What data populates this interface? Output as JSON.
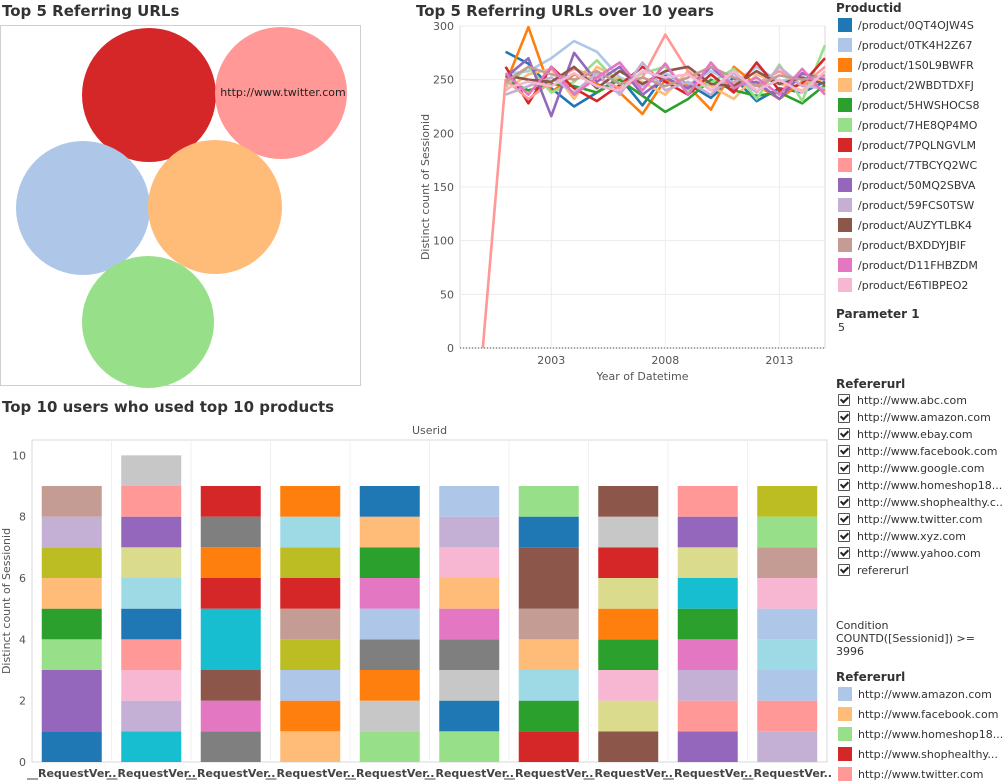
{
  "panels": {
    "bubble_title": "Top 5 Referring URLs",
    "line_title": "Top 5 Referring URLs over 10 years",
    "bar_title": "Top 10 users who used top 10 products"
  },
  "bubble": {
    "label": "http://www.twitter.com",
    "colors": [
      "#d62728",
      "#ff9896",
      "#aec7e8",
      "#ffbb78",
      "#98df8a"
    ]
  },
  "legend_product": {
    "title": "Productid",
    "items": [
      {
        "label": "/product/0QT4OJW4S",
        "color": "#1f77b4"
      },
      {
        "label": "/product/0TK4H2Z67",
        "color": "#aec7e8"
      },
      {
        "label": "/product/1S0L9BWFR",
        "color": "#ff7f0e"
      },
      {
        "label": "/product/2WBDTDXFJ",
        "color": "#ffbb78"
      },
      {
        "label": "/product/5HWSHOCS8",
        "color": "#2ca02c"
      },
      {
        "label": "/product/7HE8QP4MO",
        "color": "#98df8a"
      },
      {
        "label": "/product/7PQLNGVLM",
        "color": "#d62728"
      },
      {
        "label": "/product/7TBCYQ2WC",
        "color": "#ff9896"
      },
      {
        "label": "/product/50MQ2SBVA",
        "color": "#9467bd"
      },
      {
        "label": "/product/59FCS0TSW",
        "color": "#c5b0d5"
      },
      {
        "label": "/product/AUZYTLBK4",
        "color": "#8c564b"
      },
      {
        "label": "/product/BXDDYJBIF",
        "color": "#c49c94"
      },
      {
        "label": "/product/D11FHBZDM",
        "color": "#e377c2"
      },
      {
        "label": "/product/E6TIBPEO2",
        "color": "#f7b6d2"
      }
    ]
  },
  "parameter": {
    "title": "Parameter 1",
    "value": "5"
  },
  "filter_referer": {
    "title": "Refererurl",
    "items": [
      "http://www.abc.com",
      "http://www.amazon.com",
      "http://www.ebay.com",
      "http://www.facebook.com",
      "http://www.google.com",
      "http://www.homeshop18...",
      "http://www.shophealthy.c..",
      "http://www.twitter.com",
      "http://www.xyz.com",
      "http://www.yahoo.com",
      "refererurl"
    ]
  },
  "condition": {
    "line1": "Condition",
    "line2": "COUNTD([Sessionid]) >=",
    "line3": "3996"
  },
  "legend_referer": {
    "title": "Refererurl",
    "items": [
      {
        "label": "http://www.amazon.com",
        "color": "#aec7e8"
      },
      {
        "label": "http://www.facebook.com",
        "color": "#ffbb78"
      },
      {
        "label": "http://www.homeshop18...",
        "color": "#98df8a"
      },
      {
        "label": "http://www.shophealthy...",
        "color": "#d62728"
      },
      {
        "label": "http://www.twitter.com",
        "color": "#ff9896"
      }
    ]
  },
  "chart_data": [
    {
      "type": "line",
      "title": "Top 5 Referring URLs over 10 years",
      "xlabel": "Year of Datetime",
      "ylabel": "Distinct count of Sessionid",
      "xlim": [
        1999,
        2015
      ],
      "ylim": [
        0,
        300
      ],
      "xticks": [
        2003,
        2008,
        2013
      ],
      "yticks": [
        0,
        50,
        100,
        150,
        200,
        250,
        300
      ],
      "x": [
        2000,
        2001,
        2002,
        2003,
        2004,
        2005,
        2006,
        2007,
        2008,
        2009,
        2010,
        2011,
        2012,
        2013,
        2014,
        2015
      ],
      "series": [
        {
          "color": "#1f77b4",
          "values": [
            null,
            276,
            265,
            242,
            225,
            238,
            252,
            226,
            255,
            246,
            233,
            252,
            230,
            242,
            238,
            248
          ]
        },
        {
          "color": "#aec7e8",
          "values": [
            null,
            255,
            258,
            270,
            286,
            276,
            252,
            244,
            256,
            245,
            258,
            247,
            262,
            248,
            255,
            250
          ]
        },
        {
          "color": "#ff7f0e",
          "values": [
            null,
            246,
            299,
            238,
            255,
            246,
            238,
            218,
            250,
            244,
            222,
            262,
            245,
            232,
            248,
            240
          ]
        },
        {
          "color": "#ffbb78",
          "values": [
            null,
            240,
            255,
            260,
            232,
            262,
            250,
            248,
            236,
            258,
            244,
            232,
            255,
            246,
            240,
            252
          ]
        },
        {
          "color": "#2ca02c",
          "values": [
            null,
            250,
            240,
            246,
            244,
            238,
            250,
            235,
            220,
            232,
            250,
            240,
            235,
            238,
            228,
            245
          ]
        },
        {
          "color": "#98df8a",
          "values": [
            null,
            244,
            262,
            238,
            248,
            268,
            245,
            256,
            262,
            240,
            247,
            260,
            232,
            264,
            230,
            282
          ]
        },
        {
          "color": "#d62728",
          "values": [
            null,
            262,
            228,
            262,
            242,
            230,
            245,
            262,
            248,
            236,
            255,
            238,
            266,
            240,
            246,
            270
          ]
        },
        {
          "color": "#ff9896",
          "values": [
            0,
            250,
            232,
            248,
            260,
            252,
            242,
            252,
            292,
            258,
            240,
            248,
            246,
            258,
            244,
            262
          ]
        },
        {
          "color": "#9467bd",
          "values": [
            null,
            252,
            270,
            216,
            275,
            248,
            262,
            236,
            252,
            242,
            262,
            244,
            248,
            232,
            256,
            250
          ]
        },
        {
          "color": "#c5b0d5",
          "values": [
            null,
            236,
            244,
            252,
            238,
            256,
            236,
            266,
            240,
            248,
            236,
            256,
            238,
            262,
            244,
            242
          ]
        },
        {
          "color": "#8c564b",
          "values": [
            null,
            254,
            250,
            248,
            262,
            242,
            258,
            246,
            258,
            262,
            246,
            244,
            258,
            246,
            252,
            246
          ]
        },
        {
          "color": "#c49c94",
          "values": [
            null,
            248,
            262,
            255,
            250,
            258,
            246,
            252,
            244,
            252,
            262,
            252,
            244,
            254,
            250,
            254
          ]
        },
        {
          "color": "#e377c2",
          "values": [
            null,
            256,
            236,
            262,
            236,
            252,
            266,
            240,
            265,
            236,
            266,
            242,
            252,
            236,
            260,
            236
          ]
        },
        {
          "color": "#f7b6d2",
          "values": [
            null,
            242,
            248,
            244,
            256,
            244,
            240,
            258,
            252,
            255,
            240,
            258,
            240,
            250,
            238,
            258
          ]
        }
      ]
    },
    {
      "type": "bar",
      "stacked": true,
      "title": "Top 10 users who used top 10 products",
      "column_header": "Userid",
      "ylabel": "Distinct count of Sessionid",
      "ylim": [
        0,
        10.5
      ],
      "yticks": [
        0,
        2,
        4,
        6,
        8,
        10
      ],
      "categories": [
        "__RequestVer..",
        "__RequestVer..",
        "__RequestVer..",
        "__RequestVer..",
        "__RequestVer..",
        "__RequestVer..",
        "__RequestVer..",
        "__RequestVer..",
        "__RequestVer..",
        "__RequestVer.."
      ],
      "stacks": [
        [
          {
            "v": 1,
            "c": "#1f77b4"
          },
          {
            "v": 2,
            "c": "#9467bd"
          },
          {
            "v": 1,
            "c": "#98df8a"
          },
          {
            "v": 1,
            "c": "#2ca02c"
          },
          {
            "v": 1,
            "c": "#ffbb78"
          },
          {
            "v": 1,
            "c": "#bcbd22"
          },
          {
            "v": 1,
            "c": "#c5b0d5"
          },
          {
            "v": 1,
            "c": "#c49c94"
          }
        ],
        [
          {
            "v": 1,
            "c": "#17becf"
          },
          {
            "v": 1,
            "c": "#c5b0d5"
          },
          {
            "v": 1,
            "c": "#f7b6d2"
          },
          {
            "v": 1,
            "c": "#ff9896"
          },
          {
            "v": 1,
            "c": "#1f77b4"
          },
          {
            "v": 1,
            "c": "#9edae5"
          },
          {
            "v": 1,
            "c": "#dbdb8d"
          },
          {
            "v": 1,
            "c": "#9467bd"
          },
          {
            "v": 1,
            "c": "#ff9896"
          },
          {
            "v": 1,
            "c": "#c7c7c7"
          }
        ],
        [
          {
            "v": 1,
            "c": "#7f7f7f"
          },
          {
            "v": 1,
            "c": "#e377c2"
          },
          {
            "v": 1,
            "c": "#8c564b"
          },
          {
            "v": 2,
            "c": "#17becf"
          },
          {
            "v": 1,
            "c": "#d62728"
          },
          {
            "v": 1,
            "c": "#ff7f0e"
          },
          {
            "v": 1,
            "c": "#7f7f7f"
          },
          {
            "v": 1,
            "c": "#d62728"
          }
        ],
        [
          {
            "v": 1,
            "c": "#ffbb78"
          },
          {
            "v": 1,
            "c": "#ff7f0e"
          },
          {
            "v": 1,
            "c": "#aec7e8"
          },
          {
            "v": 1,
            "c": "#bcbd22"
          },
          {
            "v": 1,
            "c": "#c49c94"
          },
          {
            "v": 1,
            "c": "#d62728"
          },
          {
            "v": 1,
            "c": "#bcbd22"
          },
          {
            "v": 1,
            "c": "#9edae5"
          },
          {
            "v": 1,
            "c": "#ff7f0e"
          }
        ],
        [
          {
            "v": 1,
            "c": "#98df8a"
          },
          {
            "v": 1,
            "c": "#c7c7c7"
          },
          {
            "v": 1,
            "c": "#ff7f0e"
          },
          {
            "v": 1,
            "c": "#7f7f7f"
          },
          {
            "v": 1,
            "c": "#aec7e8"
          },
          {
            "v": 1,
            "c": "#e377c2"
          },
          {
            "v": 1,
            "c": "#2ca02c"
          },
          {
            "v": 1,
            "c": "#ffbb78"
          },
          {
            "v": 1,
            "c": "#1f77b4"
          }
        ],
        [
          {
            "v": 1,
            "c": "#98df8a"
          },
          {
            "v": 1,
            "c": "#1f77b4"
          },
          {
            "v": 1,
            "c": "#c7c7c7"
          },
          {
            "v": 1,
            "c": "#7f7f7f"
          },
          {
            "v": 1,
            "c": "#e377c2"
          },
          {
            "v": 1,
            "c": "#ffbb78"
          },
          {
            "v": 1,
            "c": "#f7b6d2"
          },
          {
            "v": 1,
            "c": "#c5b0d5"
          },
          {
            "v": 1,
            "c": "#aec7e8"
          }
        ],
        [
          {
            "v": 1,
            "c": "#d62728"
          },
          {
            "v": 1,
            "c": "#2ca02c"
          },
          {
            "v": 1,
            "c": "#9edae5"
          },
          {
            "v": 1,
            "c": "#ffbb78"
          },
          {
            "v": 1,
            "c": "#c49c94"
          },
          {
            "v": 2,
            "c": "#8c564b"
          },
          {
            "v": 1,
            "c": "#1f77b4"
          },
          {
            "v": 1,
            "c": "#98df8a"
          }
        ],
        [
          {
            "v": 1,
            "c": "#8c564b"
          },
          {
            "v": 1,
            "c": "#dbdb8d"
          },
          {
            "v": 1,
            "c": "#f7b6d2"
          },
          {
            "v": 1,
            "c": "#2ca02c"
          },
          {
            "v": 1,
            "c": "#ff7f0e"
          },
          {
            "v": 1,
            "c": "#dbdb8d"
          },
          {
            "v": 1,
            "c": "#d62728"
          },
          {
            "v": 1,
            "c": "#c7c7c7"
          },
          {
            "v": 1,
            "c": "#8c564b"
          }
        ],
        [
          {
            "v": 1,
            "c": "#9467bd"
          },
          {
            "v": 1,
            "c": "#ff9896"
          },
          {
            "v": 1,
            "c": "#c5b0d5"
          },
          {
            "v": 1,
            "c": "#e377c2"
          },
          {
            "v": 1,
            "c": "#2ca02c"
          },
          {
            "v": 1,
            "c": "#17becf"
          },
          {
            "v": 1,
            "c": "#dbdb8d"
          },
          {
            "v": 1,
            "c": "#9467bd"
          },
          {
            "v": 1,
            "c": "#ff9896"
          }
        ],
        [
          {
            "v": 1,
            "c": "#c5b0d5"
          },
          {
            "v": 1,
            "c": "#ff9896"
          },
          {
            "v": 1,
            "c": "#aec7e8"
          },
          {
            "v": 1,
            "c": "#9edae5"
          },
          {
            "v": 1,
            "c": "#aec7e8"
          },
          {
            "v": 1,
            "c": "#f7b6d2"
          },
          {
            "v": 1,
            "c": "#c49c94"
          },
          {
            "v": 1,
            "c": "#98df8a"
          },
          {
            "v": 1,
            "c": "#bcbd22"
          }
        ]
      ]
    }
  ]
}
